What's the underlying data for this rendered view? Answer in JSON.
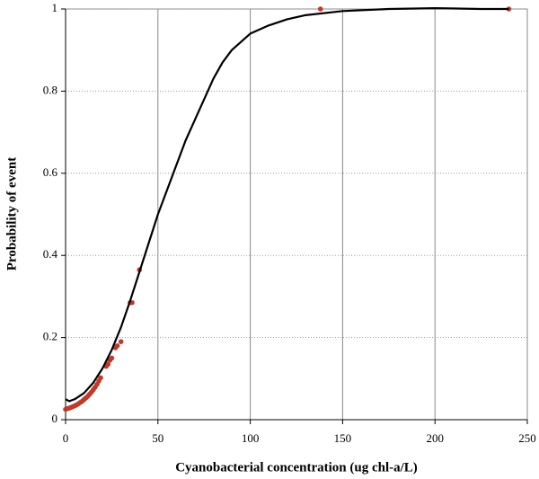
{
  "chart_data": {
    "type": "scatter",
    "x_label": "Cyanobacterial  concentration (ug chl-a/L)",
    "y_label": "Probability of event",
    "xlim": [
      0,
      250
    ],
    "xticks": [
      0,
      50,
      100,
      150,
      200,
      250
    ],
    "ylim": [
      0,
      1
    ],
    "yticks": [
      0,
      0.2,
      0.4,
      0.6,
      0.8,
      1
    ],
    "grid": true,
    "series": [
      {
        "type": "scatter",
        "color": "#c0392b",
        "x": [
          0,
          1,
          2,
          3,
          4,
          5,
          6,
          7,
          8,
          9,
          10,
          11,
          12,
          13,
          14,
          15,
          16,
          17,
          18,
          19,
          22,
          23,
          24,
          25,
          27,
          28,
          30,
          35,
          36,
          40,
          138,
          240
        ],
        "values": [
          0.025,
          0.027,
          0.028,
          0.03,
          0.032,
          0.034,
          0.036,
          0.039,
          0.042,
          0.045,
          0.049,
          0.053,
          0.057,
          0.062,
          0.067,
          0.073,
          0.079,
          0.086,
          0.094,
          0.102,
          0.13,
          0.135,
          0.145,
          0.15,
          0.175,
          0.18,
          0.19,
          0.285,
          0.285,
          0.365,
          1,
          1
        ]
      },
      {
        "type": "line",
        "color": "#000000",
        "x": [
          0,
          2,
          5,
          10,
          15,
          20,
          25,
          30,
          35,
          40,
          45,
          50,
          55,
          60,
          65,
          70,
          75,
          80,
          85,
          90,
          95,
          100,
          110,
          120,
          130,
          150,
          175,
          200,
          225,
          240
        ],
        "values": [
          0.05,
          0.045,
          0.05,
          0.065,
          0.09,
          0.125,
          0.17,
          0.225,
          0.29,
          0.36,
          0.43,
          0.5,
          0.56,
          0.62,
          0.68,
          0.73,
          0.78,
          0.83,
          0.87,
          0.9,
          0.92,
          0.94,
          0.96,
          0.975,
          0.985,
          0.995,
          1,
          1.002,
          1,
          1
        ]
      }
    ]
  }
}
